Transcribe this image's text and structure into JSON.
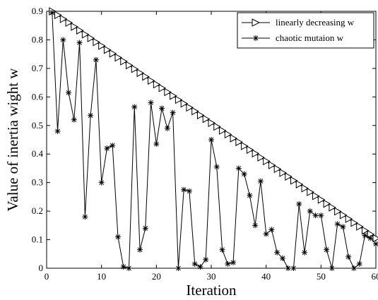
{
  "chart_data": {
    "type": "line",
    "xlabel": "Iteration",
    "ylabel": "Value of inertia wight w",
    "xlim": [
      0,
      60
    ],
    "ylim": [
      0,
      0.9
    ],
    "xticks": [
      0,
      10,
      20,
      30,
      40,
      50,
      60
    ],
    "yticks": [
      0,
      0.1,
      0.2,
      0.3,
      0.4,
      0.5,
      0.6,
      0.7,
      0.8,
      0.9
    ],
    "xtick_labels": [
      "0",
      "10",
      "20",
      "30",
      "40",
      "50",
      "60"
    ],
    "ytick_labels": [
      "0",
      "0.1",
      "0.2",
      "0.3",
      "0.4",
      "0.5",
      "0.6",
      "0.7",
      "0.8",
      "0.9"
    ],
    "grid": false,
    "legend_position": "top-right",
    "series": [
      {
        "name": "linearly decreasing w",
        "marker": "triangle-right",
        "color": "#000000",
        "x": [
          1,
          2,
          3,
          4,
          5,
          6,
          7,
          8,
          9,
          10,
          11,
          12,
          13,
          14,
          15,
          16,
          17,
          18,
          19,
          20,
          21,
          22,
          23,
          24,
          25,
          26,
          27,
          28,
          29,
          30,
          31,
          32,
          33,
          34,
          35,
          36,
          37,
          38,
          39,
          40,
          41,
          42,
          43,
          44,
          45,
          46,
          47,
          48,
          49,
          50,
          51,
          52,
          53,
          54,
          55,
          56,
          57,
          58,
          59,
          60
        ],
        "values": [
          0.9,
          0.887,
          0.873,
          0.86,
          0.846,
          0.833,
          0.819,
          0.806,
          0.792,
          0.779,
          0.765,
          0.752,
          0.738,
          0.725,
          0.711,
          0.698,
          0.684,
          0.671,
          0.657,
          0.644,
          0.631,
          0.617,
          0.604,
          0.59,
          0.577,
          0.563,
          0.55,
          0.536,
          0.523,
          0.509,
          0.496,
          0.482,
          0.469,
          0.455,
          0.442,
          0.428,
          0.415,
          0.402,
          0.388,
          0.375,
          0.361,
          0.348,
          0.334,
          0.321,
          0.307,
          0.294,
          0.28,
          0.267,
          0.253,
          0.24,
          0.226,
          0.213,
          0.199,
          0.186,
          0.173,
          0.159,
          0.146,
          0.132,
          0.119,
          0.105
        ]
      },
      {
        "name": "chaotic mutaion w",
        "marker": "asterisk",
        "color": "#000000",
        "x": [
          1,
          2,
          3,
          4,
          5,
          6,
          7,
          8,
          9,
          10,
          11,
          12,
          13,
          14,
          15,
          16,
          17,
          18,
          19,
          20,
          21,
          22,
          23,
          24,
          25,
          26,
          27,
          28,
          29,
          30,
          31,
          32,
          33,
          34,
          35,
          36,
          37,
          38,
          39,
          40,
          41,
          42,
          43,
          44,
          45,
          46,
          47,
          48,
          49,
          50,
          51,
          52,
          53,
          54,
          55,
          56,
          57,
          58,
          59,
          60
        ],
        "values": [
          0.895,
          0.48,
          0.8,
          0.615,
          0.52,
          0.79,
          0.18,
          0.535,
          0.73,
          0.3,
          0.42,
          0.43,
          0.11,
          0.005,
          0.0,
          0.565,
          0.065,
          0.14,
          0.58,
          0.435,
          0.56,
          0.49,
          0.545,
          0.0,
          0.275,
          0.27,
          0.015,
          0.005,
          0.03,
          0.45,
          0.355,
          0.065,
          0.015,
          0.02,
          0.35,
          0.33,
          0.255,
          0.15,
          0.305,
          0.12,
          0.135,
          0.055,
          0.035,
          0.0,
          0.0,
          0.225,
          0.055,
          0.2,
          0.185,
          0.185,
          0.065,
          0.0,
          0.155,
          0.145,
          0.04,
          0.0,
          0.015,
          0.115,
          0.105,
          0.085
        ]
      }
    ]
  }
}
